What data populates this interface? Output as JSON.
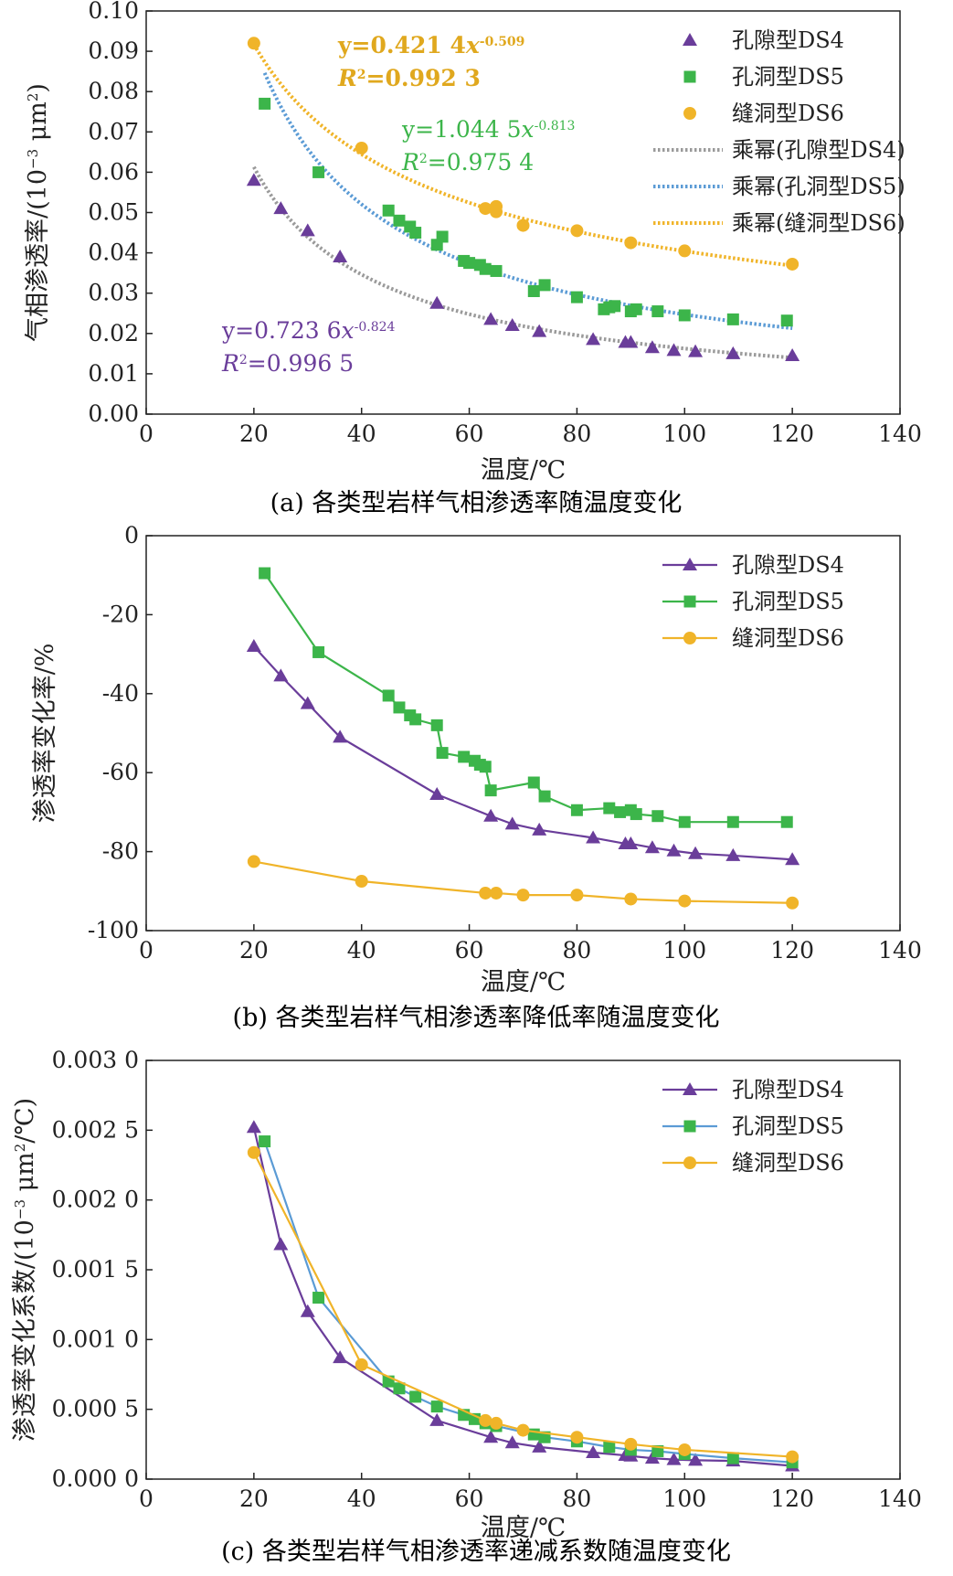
{
  "chart_data": [
    {
      "id": "a",
      "type": "scatter",
      "caption": "(a) 各类型岩样气相渗透率随温度变化",
      "xlabel": "温度/℃",
      "ylabel_main": "气相渗透率/(10",
      "ylabel_sup": "−3",
      "ylabel_tail": " μm",
      "ylabel_sup2": "2",
      "ylabel_end": ")",
      "xlim": [
        0,
        140
      ],
      "ylim": [
        0,
        0.1
      ],
      "xticks": [
        "0",
        "20",
        "40",
        "60",
        "80",
        "100",
        "120",
        "140"
      ],
      "yticks": [
        "0.00",
        "0.01",
        "0.02",
        "0.03",
        "0.04",
        "0.05",
        "0.06",
        "0.07",
        "0.08",
        "0.09",
        "0.10"
      ],
      "legend_position": "top-right",
      "series": [
        {
          "name": "孔隙型DS4",
          "marker": "triangle",
          "color": "#6a3d9a",
          "x": [
            20,
            25,
            30,
            36,
            54,
            64,
            68,
            73,
            83,
            89,
            90,
            94,
            98,
            102,
            109,
            120
          ],
          "y": [
            0.058,
            0.051,
            0.0455,
            0.039,
            0.0275,
            0.0235,
            0.022,
            0.0205,
            0.0185,
            0.0178,
            0.0178,
            0.0165,
            0.0158,
            0.0155,
            0.015,
            0.0145
          ]
        },
        {
          "name": "孔洞型DS5",
          "marker": "square",
          "color": "#3cb54a",
          "x": [
            22,
            32,
            45,
            47,
            49,
            50,
            54,
            55,
            59,
            60,
            62,
            63,
            65,
            72,
            74,
            80,
            85,
            86,
            87,
            90,
            91,
            95,
            100,
            109,
            119
          ],
          "y": [
            0.077,
            0.06,
            0.0505,
            0.048,
            0.0465,
            0.045,
            0.042,
            0.044,
            0.038,
            0.0375,
            0.037,
            0.036,
            0.0355,
            0.0305,
            0.032,
            0.029,
            0.026,
            0.0265,
            0.0268,
            0.0255,
            0.026,
            0.0255,
            0.0245,
            0.0235,
            0.0232
          ]
        },
        {
          "name": "缝洞型DS6",
          "marker": "circle",
          "color": "#f0b429",
          "x": [
            20,
            40,
            63,
            65,
            65,
            70,
            80,
            90,
            100,
            120
          ],
          "y": [
            0.092,
            0.066,
            0.051,
            0.0515,
            0.0502,
            0.0468,
            0.0455,
            0.0425,
            0.0405,
            0.0372
          ]
        }
      ],
      "fits": [
        {
          "name": "乘幂(孔隙型DS4)",
          "color": "#9a9a9a",
          "a": 0.7236,
          "b": -0.824,
          "x_start": 20,
          "x_end": 120
        },
        {
          "name": "乘幂(孔洞型DS5)",
          "color": "#5b9bd5",
          "a": 1.0445,
          "b": -0.813,
          "x_start": 22,
          "x_end": 120
        },
        {
          "name": "乘幂(缝洞型DS6)",
          "color": "#f0b429",
          "a": 0.4214,
          "b": -0.509,
          "x_start": 20,
          "x_end": 120
        }
      ],
      "equations": [
        {
          "eq": "y=0.421 4",
          "var": "x",
          "exp": "-0.509",
          "r2_prefix": "R",
          "r2_sup": "2",
          "r2_value": "=0.992 3",
          "color": "#e0a81e"
        },
        {
          "eq": "y=1.044 5",
          "var": "x",
          "exp": "-0.813",
          "r2_prefix": "R",
          "r2_sup": "2",
          "r2_value": "=0.975 4",
          "color": "#3cb54a"
        },
        {
          "eq": "y=0.723 6",
          "var": "x",
          "exp": "-0.824",
          "r2_prefix": "R",
          "r2_sup": "2",
          "r2_value": "=0.996 5",
          "color": "#6a3d9a"
        }
      ]
    },
    {
      "id": "b",
      "type": "line",
      "caption": "(b) 各类型岩样气相渗透率降低率随温度变化",
      "xlabel": "温度/℃",
      "ylabel": "渗透率变化率/%",
      "xlim": [
        0,
        140
      ],
      "ylim": [
        -100,
        0
      ],
      "xticks": [
        "0",
        "20",
        "40",
        "60",
        "80",
        "100",
        "120",
        "140"
      ],
      "yticks": [
        "-100",
        "-80",
        "-60",
        "-40",
        "-20",
        "0"
      ],
      "legend_position": "top-right",
      "series": [
        {
          "name": "孔隙型DS4",
          "marker": "triangle",
          "color": "#6a3d9a",
          "x": [
            20,
            25,
            30,
            36,
            54,
            64,
            68,
            73,
            83,
            89,
            90,
            94,
            98,
            102,
            109,
            120
          ],
          "y": [
            -28,
            -35.5,
            -42.5,
            -51,
            -65.5,
            -71,
            -73,
            -74.5,
            -76.5,
            -78,
            -78,
            -79,
            -79.8,
            -80.5,
            -81,
            -82
          ]
        },
        {
          "name": "孔洞型DS5",
          "marker": "square",
          "color": "#3cb54a",
          "x": [
            22,
            32,
            45,
            47,
            49,
            50,
            54,
            55,
            59,
            61,
            62,
            63,
            64,
            72,
            74,
            80,
            86,
            88,
            90,
            91,
            95,
            100,
            109,
            119
          ],
          "y": [
            -9.5,
            -29.5,
            -40.5,
            -43.5,
            -45.5,
            -46.5,
            -48,
            -55,
            -56,
            -57,
            -58,
            -58.5,
            -64.5,
            -62.5,
            -66,
            -69.5,
            -69,
            -70,
            -69.5,
            -70.5,
            -71,
            -72.5,
            -72.5,
            -72.5
          ]
        },
        {
          "name": "缝洞型DS6",
          "marker": "circle",
          "color": "#f0b429",
          "x": [
            20,
            40,
            63,
            65,
            70,
            80,
            90,
            100,
            120
          ],
          "y": [
            -82.5,
            -87.5,
            -90.5,
            -90.5,
            -91,
            -91,
            -92,
            -92.5,
            -93
          ]
        }
      ]
    },
    {
      "id": "c",
      "type": "line",
      "caption": "(c) 各类型岩样气相渗透率递减系数随温度变化",
      "xlabel": "温度/℃",
      "ylabel_main": "渗透率变化系数/(10",
      "ylabel_sup": "−3",
      "ylabel_tail": " μm",
      "ylabel_sup2": "2",
      "ylabel_end": "/℃)",
      "xlim": [
        0,
        140
      ],
      "ylim": [
        0,
        0.003
      ],
      "xticks": [
        "0",
        "20",
        "40",
        "60",
        "80",
        "100",
        "120",
        "140"
      ],
      "yticks": [
        "0.000 0",
        "0.000 5",
        "0.001 0",
        "0.001 5",
        "0.002 0",
        "0.002 5",
        "0.003 0"
      ],
      "legend_position": "top-right",
      "series": [
        {
          "name": "孔隙型DS4",
          "marker": "triangle",
          "color": "#6a3d9a",
          "x": [
            20,
            25,
            30,
            36,
            54,
            64,
            68,
            73,
            83,
            89,
            90,
            94,
            98,
            102,
            109,
            120
          ],
          "y": [
            0.00252,
            0.00168,
            0.0012,
            0.00087,
            0.00042,
            0.0003,
            0.00026,
            0.00023,
            0.00019,
            0.00017,
            0.000165,
            0.00015,
            0.00014,
            0.000135,
            0.00013,
            9.5e-05
          ]
        },
        {
          "name": "孔洞型DS5",
          "marker": "square",
          "color": "#5b9bd5",
          "marker_color": "#3cb54a",
          "x": [
            22,
            32,
            45,
            47,
            50,
            54,
            59,
            61,
            63,
            65,
            72,
            74,
            80,
            86,
            90,
            95,
            100,
            109,
            120
          ],
          "y": [
            0.00242,
            0.0013,
            0.0007,
            0.00065,
            0.00059,
            0.00052,
            0.00046,
            0.00043,
            0.0004,
            0.00038,
            0.00032,
            0.0003,
            0.00027,
            0.00023,
            0.00021,
            0.0002,
            0.00018,
            0.00015,
            0.00012
          ]
        },
        {
          "name": "缝洞型DS6",
          "marker": "circle",
          "color": "#f0b429",
          "x": [
            20,
            40,
            63,
            65,
            70,
            80,
            90,
            100,
            120
          ],
          "y": [
            0.00234,
            0.00082,
            0.00042,
            0.0004,
            0.00035,
            0.0003,
            0.00025,
            0.00021,
            0.00016
          ]
        }
      ]
    }
  ]
}
